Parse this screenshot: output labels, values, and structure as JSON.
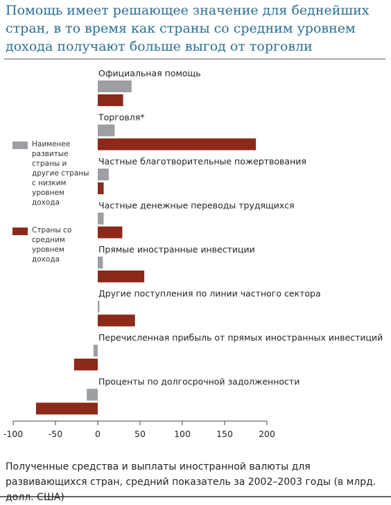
{
  "chart_data": {
    "type": "bar",
    "orientation": "horizontal",
    "title": "Помощь имеет решающее значение для беднейших стран, в то время как страны со средним уровнем дохода получают больше выгод от торговли",
    "caption": "Полученные средства и выплаты иностранной валюты для развивающихся стран, средний показатель за 2002–2003 годы (в млрд. долл. США)",
    "categories": [
      "Официальная помощь",
      "Торговля*",
      "Частные благотворительные пожертвования",
      "Частные денежные переводы трудящихся",
      "Прямые иностранные инвестиции",
      "Другие поступления по линии частного сектора",
      "Перечисленная прибыль от прямых иностранных инвестиций",
      "Проценты по долгосрочной задолженности"
    ],
    "series": [
      {
        "name": "Наименее развитые страны и другие страны с низким уровнем дохода",
        "color": "#9d9fa2",
        "values": [
          40,
          20,
          13,
          7,
          6,
          2,
          -5,
          -13
        ]
      },
      {
        "name": "Страны со средним уровнем дохода",
        "color": "#8b2a1a",
        "values": [
          30,
          187,
          7,
          29,
          55,
          44,
          -28,
          -73
        ]
      }
    ],
    "xlim": [
      -100,
      200
    ],
    "xticks": [
      -100,
      -50,
      0,
      50,
      100,
      150,
      200
    ],
    "legend": "left"
  }
}
